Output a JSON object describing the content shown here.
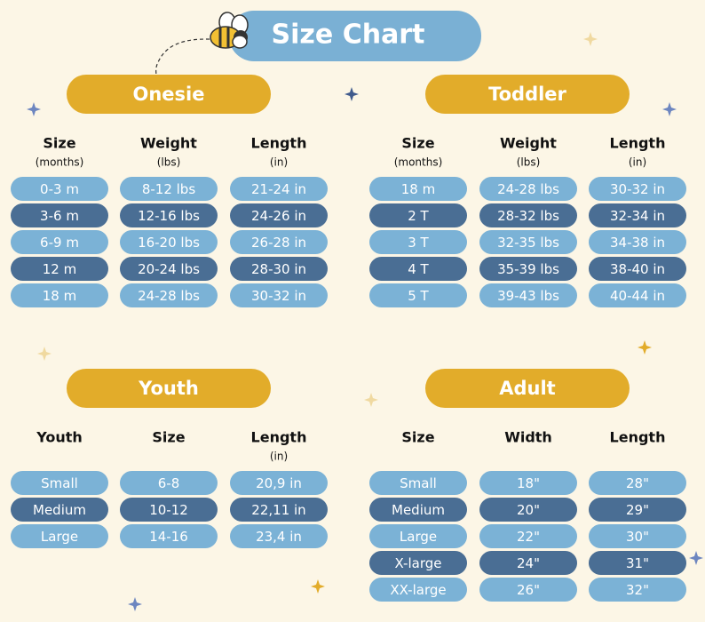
{
  "title": "Size Chart",
  "sections": [
    {
      "name": "Onesie",
      "columns": [
        {
          "header": "Size",
          "sub": "(months)"
        },
        {
          "header": "Weight",
          "sub": "(lbs)"
        },
        {
          "header": "Length",
          "sub": "(in)"
        }
      ],
      "rows": [
        [
          "0-3 m",
          "8-12 lbs",
          "21-24 in"
        ],
        [
          "3-6 m",
          "12-16 lbs",
          "24-26 in"
        ],
        [
          "6-9 m",
          "16-20 lbs",
          "26-28 in"
        ],
        [
          "12 m",
          "20-24 lbs",
          "28-30 in"
        ],
        [
          "18 m",
          "24-28 lbs",
          "30-32 in"
        ]
      ]
    },
    {
      "name": "Toddler",
      "columns": [
        {
          "header": "Size",
          "sub": "(months)"
        },
        {
          "header": "Weight",
          "sub": "(lbs)"
        },
        {
          "header": "Length",
          "sub": "(in)"
        }
      ],
      "rows": [
        [
          "18 m",
          "24-28 lbs",
          "30-32 in"
        ],
        [
          "2 T",
          "28-32 lbs",
          "32-34 in"
        ],
        [
          "3 T",
          "32-35 lbs",
          "34-38 in"
        ],
        [
          "4 T",
          "35-39 lbs",
          "38-40 in"
        ],
        [
          "5 T",
          "39-43 lbs",
          "40-44 in"
        ]
      ]
    },
    {
      "name": "Youth",
      "columns": [
        {
          "header": "Youth"
        },
        {
          "header": "Size"
        },
        {
          "header": "Length",
          "sub": "(in)"
        }
      ],
      "rows": [
        [
          "Small",
          "6-8",
          "20,9 in"
        ],
        [
          "Medium",
          "10-12",
          "22,11 in"
        ],
        [
          "Large",
          "14-16",
          "23,4 in"
        ]
      ]
    },
    {
      "name": "Adult",
      "columns": [
        {
          "header": "Size"
        },
        {
          "header": "Width"
        },
        {
          "header": "Length"
        }
      ],
      "rows": [
        [
          "Small",
          "18\"",
          "28\""
        ],
        [
          "Medium",
          "20\"",
          "29\""
        ],
        [
          "Large",
          "22\"",
          "30\""
        ],
        [
          "X-large",
          "24\"",
          "31\""
        ],
        [
          "XX-large",
          "26\"",
          "32\""
        ]
      ]
    }
  ]
}
